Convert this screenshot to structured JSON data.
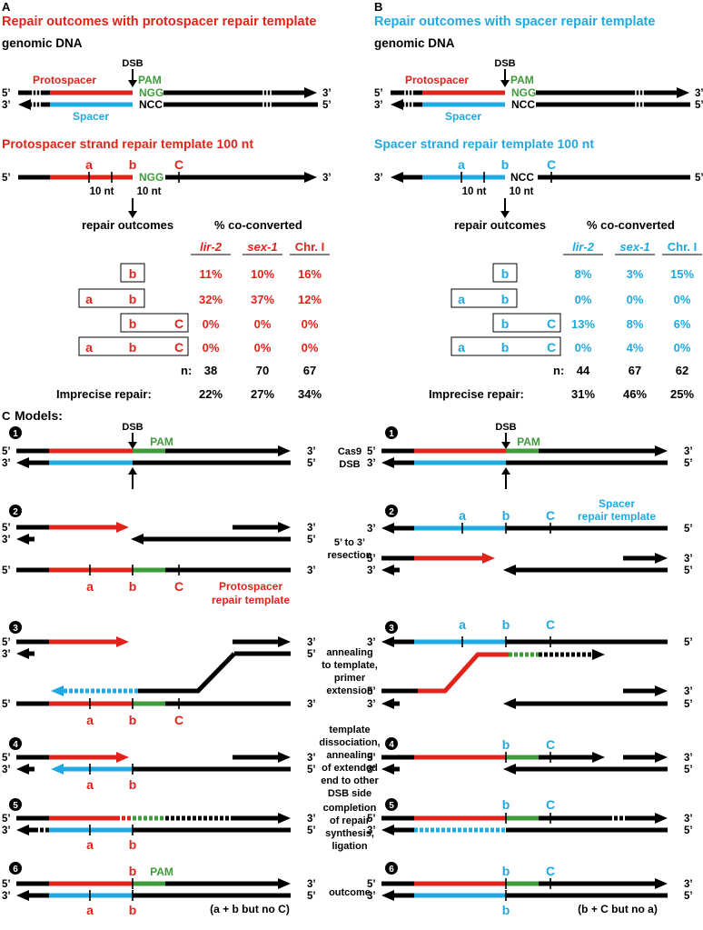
{
  "colors": {
    "red": "#e2231a",
    "blue": "#1fa9e1",
    "green": "#3e9c3a",
    "black": "#000000"
  },
  "panelA": {
    "letter": "A",
    "title": "Repair outcomes with protospacer repair template",
    "genomic": "genomic DNA",
    "dsb": "DSB",
    "protospacer": "Protospacer",
    "pam": "PAM",
    "ngg": "NGG",
    "ncc": "NCC",
    "spacer": "Spacer",
    "five": "5’",
    "three": "3’",
    "template_title": "Protospacer strand repair template 100 nt",
    "mark_a": "a",
    "mark_b": "b",
    "mark_c": "C",
    "ten_nt_1": "10 nt",
    "ten_nt_2": "10 nt",
    "outcomes_label": "repair outcomes",
    "coconv_label": "% co-converted",
    "cols": [
      "lir-2",
      "sex-1",
      "Chr. I"
    ],
    "rows": [
      [
        "11%",
        "10%",
        "16%"
      ],
      [
        "32%",
        "37%",
        "12%"
      ],
      [
        "0%",
        "0%",
        "0%"
      ],
      [
        "0%",
        "0%",
        "0%"
      ]
    ],
    "n_label": "n:",
    "n": [
      "38",
      "70",
      "67"
    ],
    "imprecise_label": "Imprecise repair:",
    "imprecise": [
      "22%",
      "27%",
      "34%"
    ]
  },
  "panelB": {
    "letter": "B",
    "title": "Repair outcomes with spacer repair template",
    "genomic": "genomic DNA",
    "dsb": "DSB",
    "protospacer": "Protospacer",
    "pam": "PAM",
    "ngg": "NGG",
    "ncc": "NCC",
    "spacer": "Spacer",
    "five": "5’",
    "three": "3’",
    "template_title": "Spacer strand repair template 100 nt",
    "mark_a": "a",
    "mark_b": "b",
    "mark_c": "C",
    "ten_nt_1": "10 nt",
    "ten_nt_2": "10 nt",
    "outcomes_label": "repair outcomes",
    "coconv_label": "% co-converted",
    "cols": [
      "lir-2",
      "sex-1",
      "Chr. I"
    ],
    "rows": [
      [
        "8%",
        "3%",
        "15%"
      ],
      [
        "0%",
        "0%",
        "0%"
      ],
      [
        "13%",
        "8%",
        "6%"
      ],
      [
        "0%",
        "4%",
        "0%"
      ]
    ],
    "n_label": "n:",
    "n": [
      "44",
      "67",
      "62"
    ],
    "imprecise_label": "Imprecise repair:",
    "imprecise": [
      "31%",
      "46%",
      "25%"
    ]
  },
  "panelC": {
    "letter": "C",
    "title": "Models:",
    "steps": [
      "1",
      "2",
      "3",
      "4",
      "5",
      "6"
    ],
    "dsb": "DSB",
    "pam": "PAM",
    "five": "5’",
    "three": "3’",
    "mark_a": "a",
    "mark_b": "b",
    "mark_c": "C",
    "step_labels": {
      "s1": [
        "Cas9",
        "DSB"
      ],
      "s2": [
        "5’ to 3’",
        "resection"
      ],
      "s3": [
        "annealing",
        "to template,",
        "primer",
        "extension"
      ],
      "s4": [
        "template",
        "dissociation,",
        "annealing",
        "of extended",
        "end to other",
        "DSB side"
      ],
      "s5": [
        "completion",
        "of repair",
        "synthesis,",
        "ligation"
      ],
      "s6": [
        "outcome"
      ]
    },
    "protospacer_template": [
      "Protospacer",
      "repair template"
    ],
    "spacer_template": [
      "Spacer",
      "repair template"
    ],
    "outcome_left": "(a + b but no C)",
    "outcome_right": "(b + C but no a)"
  }
}
